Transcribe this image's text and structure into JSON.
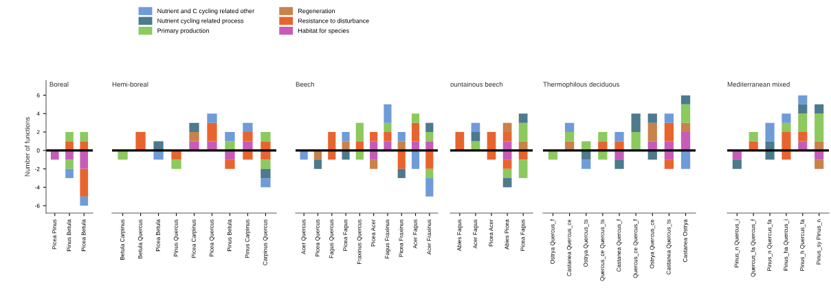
{
  "chart_data": [
    {
      "type": "bar",
      "stacked": true,
      "title": "Boreal",
      "ylabel": "Number of functions",
      "legend": "top",
      "ylim": [
        -6.8,
        7.6
      ],
      "yticks": [
        -6,
        -4,
        -2,
        0,
        2,
        4,
        6
      ],
      "ref_lines": [
        {
          "axis": "y",
          "value": 0,
          "color": "#000000"
        }
      ],
      "categories": [
        "Picea Pinus",
        "Pinus Betula",
        "Picea Betula"
      ],
      "series": [
        {
          "name": "Habitat for species",
          "color": "#c65cb8",
          "values": [
            null,
            null,
            null
          ]
        },
        {
          "name": "Resistance to disturbance",
          "color": "#e8642e",
          "values": [
            null,
            1,
            1
          ]
        },
        {
          "name": "Regeneration",
          "color": "#c8824a",
          "values": [
            null,
            null,
            null
          ]
        },
        {
          "name": "Primary production",
          "color": "#8cc95e",
          "values": [
            null,
            1,
            1
          ]
        },
        {
          "name": "Nutrient cycling related process",
          "color": "#4d7a8c",
          "values": [
            null,
            null,
            null
          ]
        },
        {
          "name": "Nutrient and C cycling related other",
          "color": "#6f9bd8",
          "values": [
            null,
            null,
            null
          ]
        },
        {
          "color": "#c65cb8",
          "values": [
            -1,
            -1,
            -2
          ]
        },
        {
          "color": "#e8642e",
          "values": [
            null,
            null,
            -3
          ]
        },
        {
          "color": "#8cc95e",
          "values": [
            null,
            -1,
            null
          ]
        },
        {
          "color": "#6f9bd8",
          "values": [
            null,
            -1,
            -1
          ]
        }
      ]
    },
    {
      "type": "bar",
      "stacked": true,
      "title": "Hemi-boreal",
      "tick_labels": "x",
      "ylim": [
        -6.8,
        6
      ],
      "yticks": [
        -6,
        -4,
        -2,
        0,
        2,
        4,
        6
      ],
      "ref_lines": [
        {
          "axis": "y",
          "value": 0,
          "color": "#000000"
        }
      ],
      "categories": [
        "Betula Carpinus",
        "Betula Quercus",
        "Picea Betula",
        "Pinus Quercus",
        "Picea Carpinus",
        "Picea Quercus",
        "Pinus Betula",
        "Pinus Carpinus",
        "Carpinus Quercus"
      ],
      "series": [
        {
          "color": "#c65cb8",
          "values": [
            null,
            null,
            null,
            null,
            1,
            1,
            null,
            1,
            null
          ]
        },
        {
          "color": "#e8642e",
          "values": [
            null,
            2,
            null,
            null,
            null,
            2,
            null,
            1,
            1
          ]
        },
        {
          "color": "#c8824a",
          "values": [
            null,
            null,
            null,
            null,
            1,
            null,
            null,
            null,
            null
          ]
        },
        {
          "color": "#8cc95e",
          "values": [
            null,
            null,
            null,
            null,
            null,
            null,
            1,
            null,
            1
          ]
        },
        {
          "color": "#4d7a8c",
          "values": [
            null,
            null,
            1,
            null,
            1,
            null,
            null,
            null,
            null
          ]
        },
        {
          "color": "#6f9bd8",
          "values": [
            null,
            null,
            null,
            null,
            null,
            1,
            1,
            1,
            null
          ]
        },
        {
          "color": "#c65cb8",
          "values": [
            null,
            null,
            null,
            null,
            null,
            null,
            -1,
            null,
            null
          ]
        },
        {
          "color": "#e8642e",
          "values": [
            null,
            null,
            null,
            -1,
            null,
            null,
            -1,
            -1,
            -1
          ]
        },
        {
          "color": "#8cc95e",
          "values": [
            -1,
            null,
            null,
            -1,
            null,
            null,
            null,
            null,
            -1
          ]
        },
        {
          "color": "#4d7a8c",
          "values": [
            null,
            null,
            null,
            null,
            null,
            null,
            null,
            null,
            -1
          ]
        },
        {
          "color": "#6f9bd8",
          "values": [
            null,
            null,
            -1,
            null,
            null,
            null,
            null,
            null,
            -1
          ]
        }
      ]
    },
    {
      "type": "bar",
      "stacked": true,
      "title": "Beech",
      "tick_labels": "x",
      "ylim": [
        -6.8,
        6
      ],
      "yticks": [
        -6,
        -4,
        -2,
        0,
        2,
        4,
        6
      ],
      "ref_lines": [
        {
          "axis": "y",
          "value": 0,
          "color": "#000000"
        }
      ],
      "categories": [
        "Acer Quercus",
        "Picea Quercus",
        "Fagus Quercus",
        "Picea Fagus",
        "Fraxinus Quercus",
        "Picea Acer",
        "Fagus Fraxinus",
        "Picea Fraxinus",
        "Acer Fagus",
        "Acer Fraxinus"
      ],
      "series": [
        {
          "color": "#c65cb8",
          "values": [
            null,
            null,
            null,
            null,
            null,
            1,
            1,
            null,
            1,
            1
          ]
        },
        {
          "color": "#e8642e",
          "values": [
            null,
            null,
            2,
            null,
            1,
            1,
            1,
            null,
            2,
            null
          ]
        },
        {
          "color": "#c8824a",
          "values": [
            null,
            null,
            null,
            1,
            null,
            null,
            null,
            1,
            null,
            null
          ]
        },
        {
          "color": "#8cc95e",
          "values": [
            null,
            null,
            null,
            null,
            2,
            null,
            1,
            null,
            1,
            1
          ]
        },
        {
          "color": "#4d7a8c",
          "values": [
            null,
            null,
            null,
            null,
            null,
            null,
            null,
            null,
            null,
            1
          ]
        },
        {
          "color": "#6f9bd8",
          "values": [
            null,
            null,
            null,
            1,
            null,
            null,
            2,
            1,
            null,
            null
          ]
        },
        {
          "color": "#c65cb8",
          "values": [
            null,
            null,
            null,
            null,
            null,
            -1,
            null,
            null,
            null,
            null
          ]
        },
        {
          "color": "#e8642e",
          "values": [
            null,
            null,
            -1,
            null,
            null,
            null,
            null,
            -2,
            null,
            -2
          ]
        },
        {
          "color": "#c8824a",
          "values": [
            null,
            -1,
            null,
            null,
            null,
            -1,
            null,
            null,
            null,
            null
          ]
        },
        {
          "color": "#8cc95e",
          "values": [
            null,
            null,
            null,
            null,
            -1,
            null,
            null,
            null,
            null,
            -1
          ]
        },
        {
          "color": "#4d7a8c",
          "values": [
            null,
            -1,
            null,
            -1,
            null,
            null,
            null,
            -1,
            null,
            null
          ]
        },
        {
          "color": "#6f9bd8",
          "values": [
            -1,
            null,
            null,
            null,
            null,
            null,
            null,
            null,
            -2,
            -2
          ]
        }
      ]
    },
    {
      "type": "bar",
      "stacked": true,
      "title": "ountainous beech",
      "tick_labels": "x",
      "ylim": [
        -6.8,
        6
      ],
      "yticks": [
        -6,
        -4,
        -2,
        0,
        2,
        4,
        6
      ],
      "ref_lines": [
        {
          "axis": "y",
          "value": 0,
          "color": "#000000"
        }
      ],
      "categories": [
        "Abies Fagus",
        "Acer Fagus",
        "Picea Acer",
        "Abies Picea",
        "Picea Fagus"
      ],
      "series": [
        {
          "color": "#c65cb8",
          "values": [
            null,
            null,
            null,
            1,
            null
          ]
        },
        {
          "color": "#e8642e",
          "values": [
            2,
            null,
            2,
            1,
            null
          ]
        },
        {
          "color": "#c8824a",
          "values": [
            null,
            null,
            null,
            1,
            1
          ]
        },
        {
          "color": "#8cc95e",
          "values": [
            null,
            1,
            null,
            null,
            2
          ]
        },
        {
          "color": "#4d7a8c",
          "values": [
            null,
            1,
            null,
            null,
            1
          ]
        },
        {
          "color": "#6f9bd8",
          "values": [
            null,
            1,
            null,
            null,
            null
          ]
        },
        {
          "color": "#c65cb8",
          "values": [
            null,
            null,
            null,
            -1,
            null
          ]
        },
        {
          "color": "#e8642e",
          "values": [
            null,
            null,
            -1,
            -1,
            -1
          ]
        },
        {
          "color": "#8cc95e",
          "values": [
            null,
            null,
            null,
            -1,
            -2
          ]
        },
        {
          "color": "#4d7a8c",
          "values": [
            null,
            null,
            null,
            -1,
            null
          ]
        }
      ]
    },
    {
      "type": "bar",
      "stacked": true,
      "title": "Thermophilous deciduous",
      "tick_labels": "x",
      "ylim": [
        -6.8,
        6
      ],
      "yticks": [
        -6,
        -4,
        -2,
        0,
        2,
        4,
        6
      ],
      "ref_lines": [
        {
          "axis": "y",
          "value": 0,
          "color": "#000000"
        }
      ],
      "categories": [
        "Ostrya Quercus_f",
        "Castanea Quercus_ce",
        "Ostrya Quercus_ts",
        "Quercus_ce Quercus_ts",
        "Castanea Quercus_f",
        "Quercus_ce Quercus_f",
        "Ostrya Quercus_ce",
        "Castanea Quercus_ts",
        "Castanea Ostrya"
      ],
      "series": [
        {
          "color": "#c65cb8",
          "values": [
            null,
            null,
            null,
            null,
            null,
            null,
            1,
            1,
            2
          ]
        },
        {
          "color": "#e8642e",
          "values": [
            null,
            null,
            null,
            1,
            1,
            null,
            null,
            2,
            null
          ]
        },
        {
          "color": "#c8824a",
          "values": [
            null,
            1,
            null,
            null,
            null,
            null,
            2,
            null,
            1
          ]
        },
        {
          "color": "#8cc95e",
          "values": [
            null,
            1,
            1,
            1,
            null,
            2,
            null,
            null,
            2
          ]
        },
        {
          "color": "#4d7a8c",
          "values": [
            null,
            null,
            null,
            null,
            null,
            2,
            1,
            null,
            1
          ]
        },
        {
          "color": "#6f9bd8",
          "values": [
            null,
            1,
            null,
            null,
            1,
            null,
            null,
            1,
            null
          ]
        },
        {
          "color": "#c65cb8",
          "values": [
            null,
            null,
            null,
            null,
            -1,
            null,
            null,
            -1,
            null
          ]
        },
        {
          "color": "#e8642e",
          "values": [
            null,
            null,
            null,
            null,
            null,
            null,
            null,
            -1,
            null
          ]
        },
        {
          "color": "#8cc95e",
          "values": [
            -1,
            null,
            null,
            -1,
            null,
            null,
            null,
            null,
            null
          ]
        },
        {
          "color": "#4d7a8c",
          "values": [
            null,
            null,
            -1,
            null,
            -1,
            null,
            -1,
            null,
            null
          ]
        },
        {
          "color": "#6f9bd8",
          "values": [
            null,
            null,
            -1,
            null,
            null,
            null,
            null,
            null,
            -2
          ]
        }
      ]
    },
    {
      "type": "bar",
      "stacked": true,
      "title": "Mediterranean mixed",
      "tick_labels": "x",
      "ylim": [
        -6.8,
        6
      ],
      "yticks": [
        -6,
        -4,
        -2,
        0,
        2,
        4,
        6
      ],
      "ref_lines": [
        {
          "axis": "y",
          "value": 0,
          "color": "#000000"
        }
      ],
      "categories": [
        "Pinus_n Quercus_i",
        "Quercus_fa Quercus_f",
        "Pinus_n Quercus_fa",
        "Pinus_ha Quercus_i",
        "Pinus_h Quercus_fa",
        "Pinus_sy Pinus_n"
      ],
      "series": [
        {
          "color": "#c65cb8",
          "values": [
            null,
            null,
            null,
            null,
            1,
            null
          ]
        },
        {
          "color": "#e8642e",
          "values": [
            null,
            1,
            null,
            2,
            1,
            null
          ]
        },
        {
          "color": "#c8824a",
          "values": [
            null,
            null,
            null,
            null,
            null,
            1
          ]
        },
        {
          "color": "#8cc95e",
          "values": [
            null,
            1,
            null,
            1,
            2,
            3
          ]
        },
        {
          "color": "#4d7a8c",
          "values": [
            null,
            null,
            1,
            null,
            1,
            1
          ]
        },
        {
          "color": "#6f9bd8",
          "values": [
            null,
            null,
            2,
            1,
            1,
            null
          ]
        },
        {
          "color": "#c65cb8",
          "values": [
            -1,
            null,
            null,
            null,
            null,
            -1
          ]
        },
        {
          "color": "#e8642e",
          "values": [
            null,
            null,
            null,
            -1,
            null,
            null
          ]
        },
        {
          "color": "#c8824a",
          "values": [
            null,
            null,
            null,
            null,
            null,
            -1
          ]
        },
        {
          "color": "#4d7a8c",
          "values": [
            -1,
            null,
            -1,
            null,
            null,
            null
          ]
        }
      ]
    }
  ]
}
